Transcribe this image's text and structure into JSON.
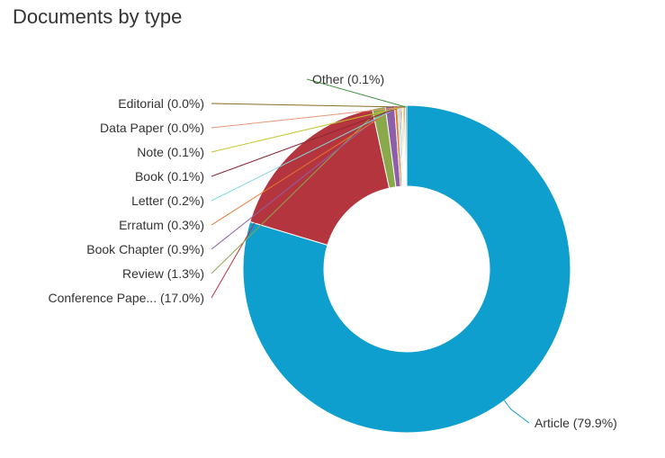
{
  "chart_data": {
    "type": "pie",
    "title": "Documents by type",
    "donut": true,
    "slices": [
      {
        "label": "Article (79.9%)",
        "value": 79.9,
        "color": "#0f9fcf"
      },
      {
        "label": "Conference Pape... (17.0%)",
        "value": 17.0,
        "color": "#b5353f"
      },
      {
        "label": "Review (1.3%)",
        "value": 1.3,
        "color": "#8aa94a"
      },
      {
        "label": "Book Chapter (0.9%)",
        "value": 0.9,
        "color": "#8c5fa8"
      },
      {
        "label": "Erratum (0.3%)",
        "value": 0.3,
        "color": "#e8772e"
      },
      {
        "label": "Letter (0.2%)",
        "value": 0.2,
        "color": "#7fd9dc"
      },
      {
        "label": "Book (0.1%)",
        "value": 0.1,
        "color": "#8a2834"
      },
      {
        "label": "Note (0.1%)",
        "value": 0.1,
        "color": "#c7c42d"
      },
      {
        "label": "Data Paper (0.0%)",
        "value": 0.0,
        "color": "#e9967a"
      },
      {
        "label": "Editorial (0.0%)",
        "value": 0.0,
        "color": "#8a6a2a"
      },
      {
        "label": "Other (0.1%)",
        "value": 0.1,
        "color": "#3f8f3f"
      }
    ]
  }
}
